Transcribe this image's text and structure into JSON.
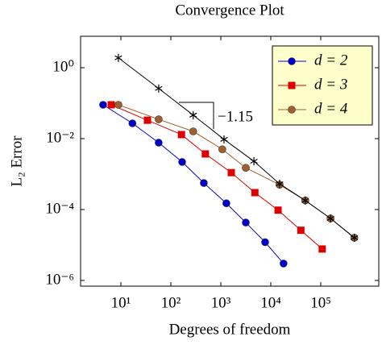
{
  "chart_data": {
    "type": "line",
    "title": "Convergence Plot",
    "x_label": "Degrees of freedom",
    "y_label": "L₂ Error",
    "x_scale": "log",
    "y_scale": "log",
    "xlim": [
      1.56,
      1450000
    ],
    "ylim": [
      6.9e-07,
      7.7
    ],
    "xticks": [
      {
        "value": 10,
        "label": "10¹"
      },
      {
        "value": 100,
        "label": "10²"
      },
      {
        "value": 1000,
        "label": "10³"
      },
      {
        "value": 10000,
        "label": "10⁴"
      },
      {
        "value": 100000,
        "label": "10⁵"
      }
    ],
    "yticks": [
      {
        "value": 1,
        "label": "10⁰"
      },
      {
        "value": 0.01,
        "label": "10⁻²"
      },
      {
        "value": 0.0001,
        "label": "10⁻⁴"
      },
      {
        "value": 1e-06,
        "label": "10⁻⁶"
      }
    ],
    "legend_position": "upper right",
    "annotation": "−1.15",
    "series": [
      {
        "name": "d = 2",
        "color": "#0000cc",
        "marker": "circle",
        "x": [
          4.4,
          17,
          57,
          168,
          457,
          1290,
          3160,
          7700,
          18000
        ],
        "values": [
          0.09,
          0.027,
          0.0077,
          0.0022,
          0.00056,
          0.00015,
          4.3e-05,
          1.2e-05,
          3e-06
        ]
      },
      {
        "name": "d = 3",
        "color": "#dd0000",
        "marker": "square",
        "x": [
          6.4,
          34,
          163,
          490,
          1620,
          4800,
          14000,
          40000,
          107000
        ],
        "values": [
          0.09,
          0.033,
          0.013,
          0.0037,
          0.0011,
          0.0003,
          9.6e-05,
          2.6e-05,
          7.7e-06
        ]
      },
      {
        "name": "d = 4",
        "color": "#a0602d",
        "marker": "circle",
        "x": [
          8.9,
          57,
          280,
          1070,
          3160,
          15000,
          49000,
          157000,
          470000
        ],
        "values": [
          0.09,
          0.035,
          0.016,
          0.005,
          0.0015,
          0.0005,
          0.00018,
          5.6e-05,
          1.6e-05
        ]
      },
      {
        "color": "#000000",
        "marker": "star",
        "x": [
          8.9,
          57,
          280,
          1160,
          4600,
          15000,
          49000,
          157000,
          470000
        ],
        "values": [
          1.9,
          0.26,
          0.046,
          0.0095,
          0.0023,
          0.00053,
          0.00018,
          5.6e-05,
          1.6e-05
        ]
      }
    ]
  }
}
